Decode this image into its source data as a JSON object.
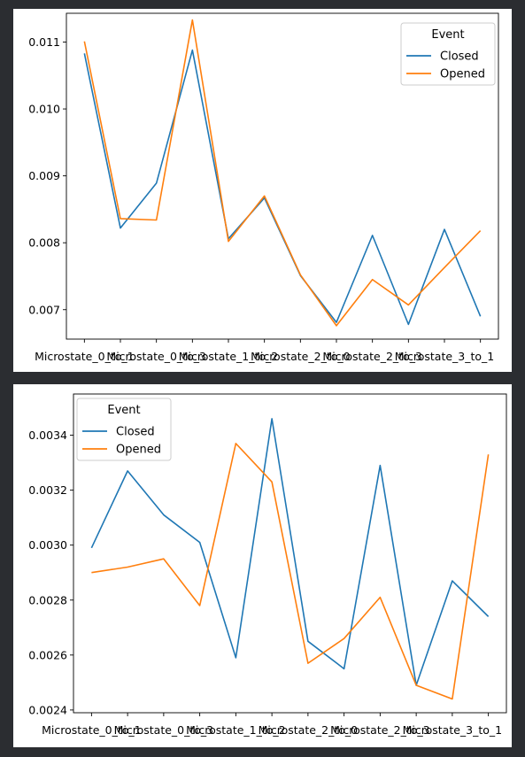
{
  "colors": {
    "closed": "#1f77b4",
    "opened": "#ff7f0e",
    "background": "#2b2d31"
  },
  "chart_data": [
    {
      "type": "line",
      "x_ticks": [
        "Microstate_0_to_1",
        "Microstate_0_to_3",
        "Microstate_1_to_2",
        "Microstate_2_to_0",
        "Microstate_2_to_3",
        "Microstate_3_to_1"
      ],
      "x": [
        0,
        1,
        2,
        3,
        4,
        5,
        6,
        7,
        8,
        9,
        10,
        11
      ],
      "ylim": [
        0.00656,
        0.01143
      ],
      "y_ticks": [
        "0.007",
        "0.008",
        "0.009",
        "0.010",
        "0.011"
      ],
      "y_tick_values": [
        0.007,
        0.008,
        0.009,
        0.01,
        0.011
      ],
      "legend": {
        "title": "Event",
        "position": "top-right"
      },
      "series": [
        {
          "name": "Closed",
          "values": [
            0.01083,
            0.00822,
            0.00889,
            0.01088,
            0.00806,
            0.00867,
            0.00751,
            0.00681,
            0.00811,
            0.00678,
            0.0082,
            0.0069
          ]
        },
        {
          "name": "Opened",
          "values": [
            0.01101,
            0.00836,
            0.00834,
            0.01133,
            0.00802,
            0.0087,
            0.00752,
            0.00676,
            0.00745,
            0.00707,
            0.00763,
            0.00818
          ]
        }
      ]
    },
    {
      "type": "line",
      "x_ticks": [
        "Microstate_0_to_1",
        "Microstate_0_to_3",
        "Microstate_1_to_2",
        "Microstate_2_to_0",
        "Microstate_2_to_3",
        "Microstate_3_to_1"
      ],
      "x": [
        0,
        1,
        2,
        3,
        4,
        5,
        6,
        7,
        8,
        9,
        10,
        11
      ],
      "ylim": [
        0.00239,
        0.00355
      ],
      "y_ticks": [
        "0.0024",
        "0.0026",
        "0.0028",
        "0.0030",
        "0.0032",
        "0.0034"
      ],
      "y_tick_values": [
        0.0024,
        0.0026,
        0.0028,
        0.003,
        0.0032,
        0.0034
      ],
      "legend": {
        "title": "Event",
        "position": "top-left"
      },
      "series": [
        {
          "name": "Closed",
          "values": [
            0.00299,
            0.00327,
            0.00311,
            0.00301,
            0.00259,
            0.00346,
            0.00265,
            0.00255,
            0.00329,
            0.00249,
            0.00287,
            0.00274
          ]
        },
        {
          "name": "Opened",
          "values": [
            0.0029,
            0.00292,
            0.00295,
            0.00278,
            0.00337,
            0.00323,
            0.00257,
            0.00266,
            0.00281,
            0.00249,
            0.00244,
            0.00333
          ]
        }
      ]
    }
  ]
}
